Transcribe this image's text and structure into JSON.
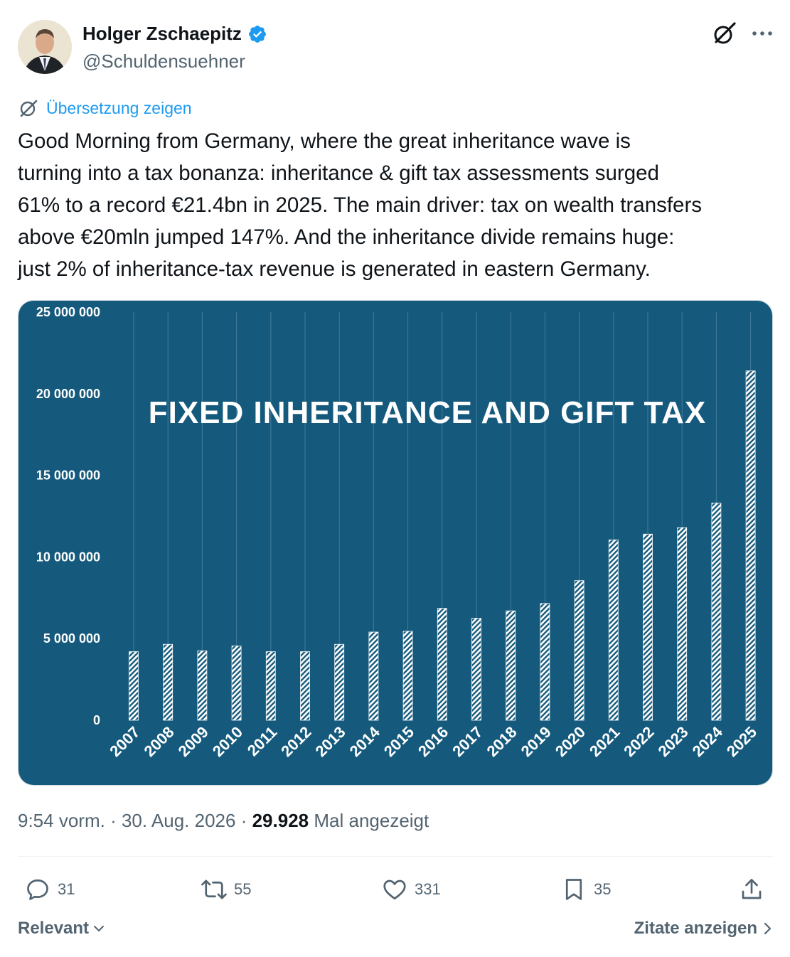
{
  "author": {
    "display_name": "Holger Zschaepitz",
    "handle": "@Schuldensuehner"
  },
  "icons": {
    "verified": "verified-badge-icon",
    "grok": "grok-icon",
    "more": "more-icon",
    "translate": "translate-icon",
    "reply": "reply-icon",
    "retweet": "retweet-icon",
    "like": "like-icon",
    "bookmark": "bookmark-icon",
    "share": "share-icon"
  },
  "colors": {
    "accent": "#1d9bf0",
    "chart_background": "#155a7d",
    "bar_stripe": "#ffffff"
  },
  "translate_label": "Übersetzung zeigen",
  "tweet_text": "Good Morning from Germany, where the great inheritance wave is\nturning into a tax bonanza: inheritance & gift tax assessments surged\n61% to a record €21.4bn in 2025. The main driver: tax on wealth transfers\nabove €20mln jumped 147%. And the inheritance divide remains huge:\njust 2% of inheritance-tax revenue is generated in eastern Germany.",
  "meta": {
    "time": "9:54 vorm.",
    "date": "30. Aug. 2026",
    "views": "29.928",
    "views_label": "Mal angezeigt",
    "separator": "·"
  },
  "actions": {
    "replies": "31",
    "reposts": "55",
    "likes": "331",
    "bookmarks": "35"
  },
  "footer": {
    "sort_label": "Relevant",
    "quotes_label": "Zitate anzeigen"
  },
  "chart_data": {
    "type": "bar",
    "title": "FIXED INHERITANCE AND GIFT TAX",
    "categories": [
      "2007",
      "2008",
      "2009",
      "2010",
      "2011",
      "2012",
      "2013",
      "2014",
      "2015",
      "2016",
      "2017",
      "2018",
      "2019",
      "2020",
      "2021",
      "2022",
      "2023",
      "2024",
      "2025"
    ],
    "values": [
      4200000,
      4650000,
      4250000,
      4550000,
      4200000,
      4200000,
      4650000,
      5400000,
      5450000,
      6850000,
      6250000,
      6700000,
      7150000,
      8550000,
      11050000,
      11400000,
      11800000,
      13300000,
      21400000
    ],
    "y_ticks": [
      "0",
      "5 000 000",
      "10 000 000",
      "15 000 000",
      "20 000 000",
      "25 000 000"
    ],
    "ylim": [
      0,
      25000000
    ],
    "grid": "vertical",
    "legend": "none",
    "xlabel": "",
    "ylabel": ""
  }
}
